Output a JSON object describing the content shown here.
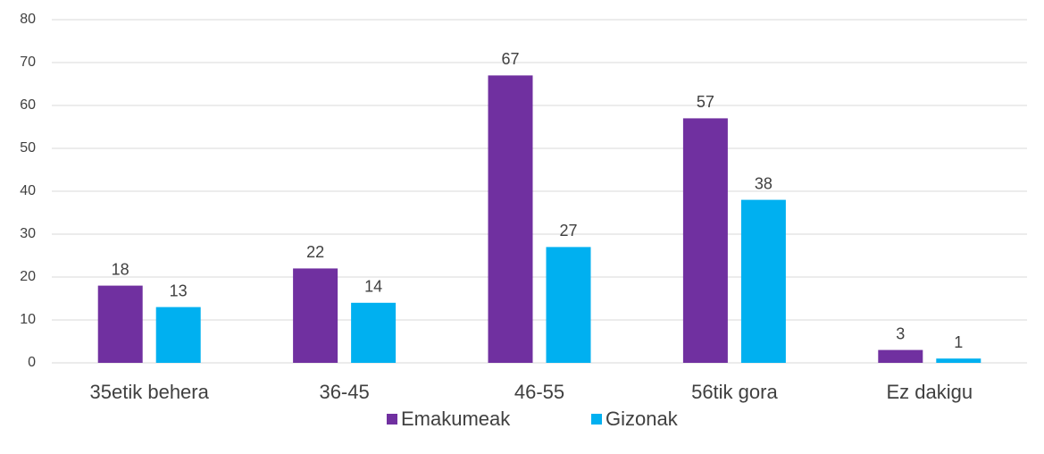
{
  "chart_data": {
    "type": "bar",
    "categories": [
      "35etik behera",
      "36-45",
      "46-55",
      "56tik gora",
      "Ez dakigu"
    ],
    "series": [
      {
        "name": "Emakumeak",
        "color": "#7030a0",
        "values": [
          18,
          22,
          67,
          57,
          3
        ]
      },
      {
        "name": "Gizonak",
        "color": "#00b0f0",
        "values": [
          13,
          14,
          27,
          38,
          1
        ]
      }
    ],
    "ylim": [
      0,
      80
    ],
    "yticks": [
      0,
      10,
      20,
      30,
      40,
      50,
      60,
      70,
      80
    ],
    "grid": true,
    "legend": "bottom"
  }
}
